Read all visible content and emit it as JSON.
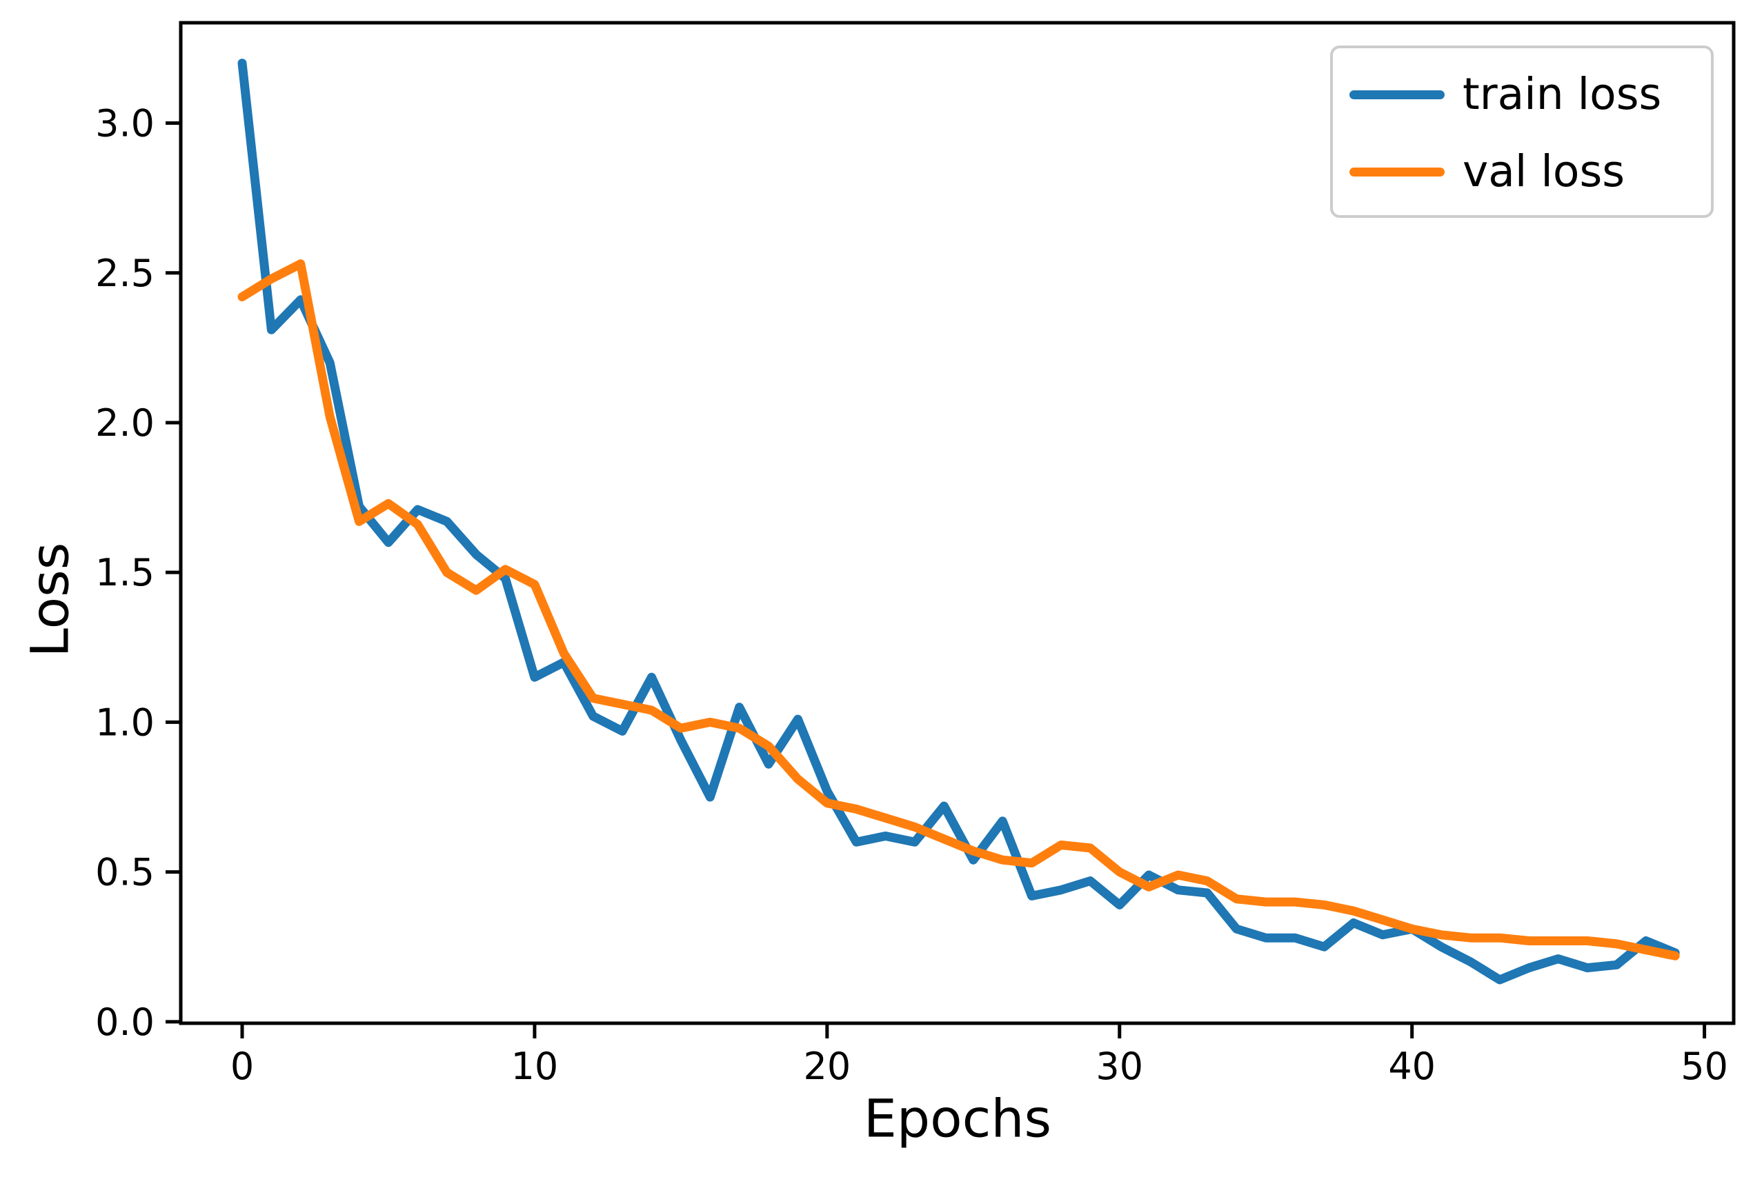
{
  "figure": {
    "background": "#ffffff",
    "axes_color": "#000000",
    "legend_border_color": "#cccccc"
  },
  "chart_data": {
    "type": "line",
    "title": "",
    "xlabel": "Epochs",
    "ylabel": "Loss",
    "grid": false,
    "legend_position": "upper right",
    "xlim": [
      -2.1,
      51.0
    ],
    "ylim": [
      -0.005,
      3.335
    ],
    "xticks": {
      "values": [
        0,
        10,
        20,
        30,
        40,
        50
      ],
      "labels": [
        "0",
        "10",
        "20",
        "30",
        "40",
        "50"
      ]
    },
    "yticks": {
      "values": [
        0.0,
        0.5,
        1.0,
        1.5,
        2.0,
        2.5,
        3.0
      ],
      "labels": [
        "0.0",
        "0.5",
        "1.0",
        "1.5",
        "2.0",
        "2.5",
        "3.0"
      ]
    },
    "x": [
      0,
      1,
      2,
      3,
      4,
      5,
      6,
      7,
      8,
      9,
      10,
      11,
      12,
      13,
      14,
      15,
      16,
      17,
      18,
      19,
      20,
      21,
      22,
      23,
      24,
      25,
      26,
      27,
      28,
      29,
      30,
      31,
      32,
      33,
      34,
      35,
      36,
      37,
      38,
      39,
      40,
      41,
      42,
      43,
      44,
      45,
      46,
      47,
      48,
      49
    ],
    "series": [
      {
        "name": "train loss",
        "color": "#1f77b4",
        "values": [
          3.2,
          2.31,
          2.41,
          2.2,
          1.72,
          1.6,
          1.71,
          1.67,
          1.56,
          1.48,
          1.15,
          1.2,
          1.02,
          0.97,
          1.15,
          0.94,
          0.75,
          1.05,
          0.86,
          1.01,
          0.77,
          0.6,
          0.62,
          0.6,
          0.72,
          0.54,
          0.67,
          0.42,
          0.44,
          0.47,
          0.39,
          0.49,
          0.44,
          0.43,
          0.31,
          0.28,
          0.28,
          0.25,
          0.33,
          0.29,
          0.31,
          0.25,
          0.2,
          0.14,
          0.18,
          0.21,
          0.18,
          0.19,
          0.27,
          0.23
        ]
      },
      {
        "name": "val loss",
        "color": "#ff7f0e",
        "values": [
          2.42,
          2.48,
          2.53,
          2.02,
          1.67,
          1.73,
          1.66,
          1.5,
          1.44,
          1.51,
          1.46,
          1.23,
          1.08,
          1.06,
          1.04,
          0.98,
          1.0,
          0.98,
          0.92,
          0.81,
          0.73,
          0.71,
          0.68,
          0.65,
          0.61,
          0.57,
          0.54,
          0.53,
          0.59,
          0.58,
          0.5,
          0.45,
          0.49,
          0.47,
          0.41,
          0.4,
          0.4,
          0.39,
          0.37,
          0.34,
          0.31,
          0.29,
          0.28,
          0.28,
          0.27,
          0.27,
          0.27,
          0.26,
          0.24,
          0.22
        ]
      }
    ]
  },
  "legend": {
    "entries": [
      {
        "label": "train loss",
        "color": "#1f77b4"
      },
      {
        "label": "val loss",
        "color": "#ff7f0e"
      }
    ]
  }
}
